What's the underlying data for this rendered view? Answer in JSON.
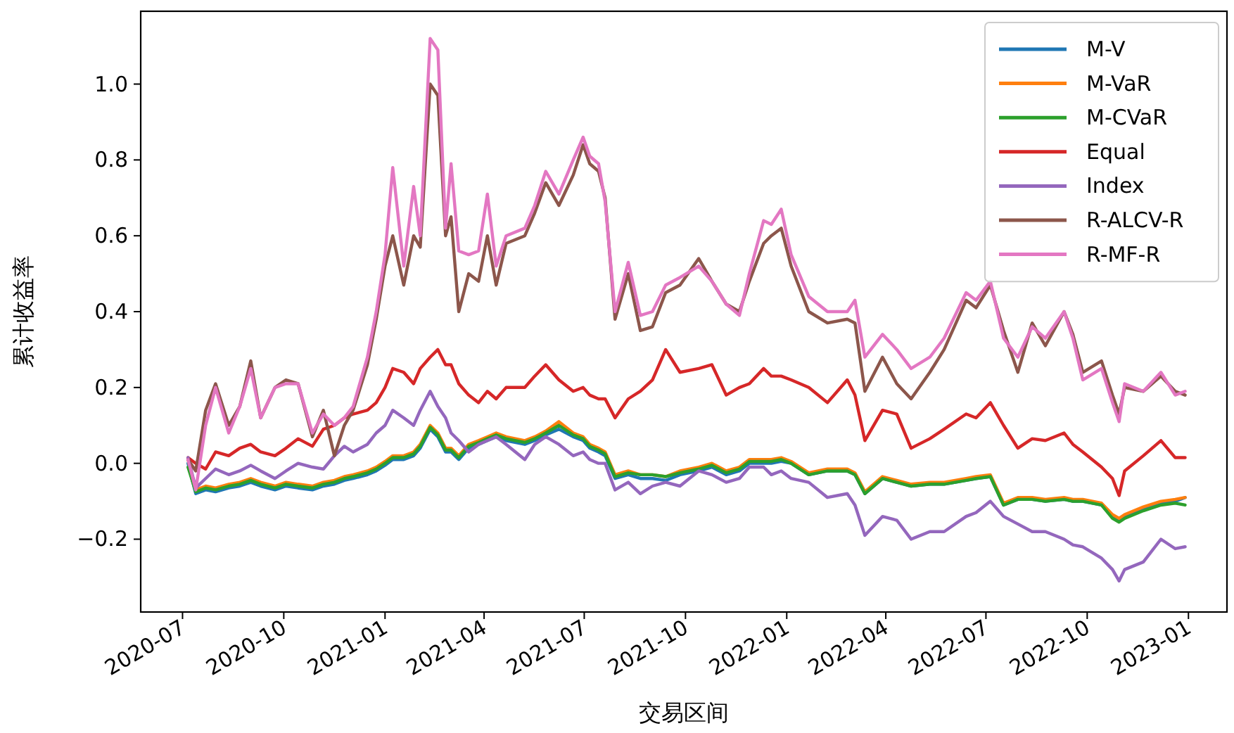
{
  "chart_data": {
    "type": "line",
    "xlabel": "交易区间",
    "ylabel": "累计收益率",
    "legend": "top right",
    "grid": false,
    "line_style": "solid",
    "marker": "none",
    "xlim": [
      "2020-05-24",
      "2023-02-05"
    ],
    "ylim": [
      -0.392,
      1.192
    ],
    "xticks": [
      {
        "value": "2020-07-01",
        "label": "2020-07"
      },
      {
        "value": "2020-10-01",
        "label": "2020-10"
      },
      {
        "value": "2021-01-01",
        "label": "2021-01"
      },
      {
        "value": "2021-04-01",
        "label": "2021-04"
      },
      {
        "value": "2021-07-01",
        "label": "2021-07"
      },
      {
        "value": "2021-10-01",
        "label": "2021-10"
      },
      {
        "value": "2022-01-01",
        "label": "2022-01"
      },
      {
        "value": "2022-04-01",
        "label": "2022-04"
      },
      {
        "value": "2022-07-01",
        "label": "2022-07"
      },
      {
        "value": "2022-10-01",
        "label": "2022-10"
      },
      {
        "value": "2023-01-01",
        "label": "2023-01"
      }
    ],
    "yticks": [
      {
        "value": -0.2,
        "label": "−0.2"
      },
      {
        "value": 0,
        "label": "0.0"
      },
      0.2,
      0.4,
      0.6,
      0.8,
      {
        "value": 1,
        "label": "1.0"
      }
    ],
    "x": [
      "2020-07-06",
      "2020-07-13",
      "2020-07-22",
      "2020-07-31",
      "2020-08-12",
      "2020-08-22",
      "2020-09-01",
      "2020-09-10",
      "2020-09-23",
      "2020-10-03",
      "2020-10-14",
      "2020-10-27",
      "2020-11-06",
      "2020-11-16",
      "2020-11-25",
      "2020-12-03",
      "2020-12-16",
      "2020-12-24",
      "2021-01-01",
      "2021-01-08",
      "2021-01-18",
      "2021-01-27",
      "2021-02-02",
      "2021-02-11",
      "2021-02-18",
      "2021-02-25",
      "2021-03-02",
      "2021-03-09",
      "2021-03-18",
      "2021-03-27",
      "2021-04-04",
      "2021-04-12",
      "2021-04-21",
      "2021-05-08",
      "2021-05-17",
      "2021-05-27",
      "2021-06-08",
      "2021-06-21",
      "2021-06-30",
      "2021-07-06",
      "2021-07-14",
      "2021-07-20",
      "2021-07-29",
      "2021-08-10",
      "2021-08-21",
      "2021-09-01",
      "2021-09-13",
      "2021-09-26",
      "2021-10-13",
      "2021-10-25",
      "2021-11-07",
      "2021-11-19",
      "2021-11-28",
      "2021-12-11",
      "2021-12-18",
      "2021-12-27",
      "2022-01-05",
      "2022-01-21",
      "2022-02-07",
      "2022-02-25",
      "2022-03-04",
      "2022-03-13",
      "2022-03-29",
      "2022-04-11",
      "2022-04-24",
      "2022-05-11",
      "2022-05-24",
      "2022-06-13",
      "2022-06-22",
      "2022-07-05",
      "2022-07-17",
      "2022-07-30",
      "2022-08-12",
      "2022-08-24",
      "2022-09-10",
      "2022-09-18",
      "2022-09-27",
      "2022-10-14",
      "2022-10-24",
      "2022-10-30",
      "2022-11-04",
      "2022-11-21",
      "2022-12-07",
      "2022-12-20",
      "2022-12-29"
    ],
    "series": [
      {
        "name": "M-V",
        "color": "#1f77b4",
        "values": [
          0.0,
          -0.08,
          -0.07,
          -0.075,
          -0.065,
          -0.06,
          -0.05,
          -0.06,
          -0.07,
          -0.06,
          -0.065,
          -0.07,
          -0.06,
          -0.055,
          -0.045,
          -0.04,
          -0.03,
          -0.02,
          -0.005,
          0.01,
          0.01,
          0.02,
          0.04,
          0.09,
          0.07,
          0.03,
          0.03,
          0.01,
          0.04,
          0.05,
          0.06,
          0.07,
          0.06,
          0.05,
          0.06,
          0.075,
          0.09,
          0.07,
          0.06,
          0.04,
          0.03,
          0.02,
          -0.04,
          -0.03,
          -0.04,
          -0.04,
          -0.045,
          -0.03,
          -0.02,
          -0.01,
          -0.03,
          -0.02,
          0.0,
          0.0,
          0.0,
          0.005,
          0.0,
          -0.03,
          -0.02,
          -0.02,
          -0.03,
          -0.08,
          -0.04,
          -0.05,
          -0.06,
          -0.055,
          -0.055,
          -0.045,
          -0.04,
          -0.035,
          -0.11,
          -0.095,
          -0.095,
          -0.1,
          -0.095,
          -0.1,
          -0.1,
          -0.11,
          -0.14,
          -0.15,
          -0.14,
          -0.12,
          -0.105,
          -0.1,
          -0.09
        ]
      },
      {
        "name": "M-VaR",
        "color": "#ff7f0e",
        "values": [
          0.01,
          -0.07,
          -0.06,
          -0.065,
          -0.055,
          -0.05,
          -0.04,
          -0.05,
          -0.06,
          -0.05,
          -0.055,
          -0.06,
          -0.05,
          -0.045,
          -0.035,
          -0.03,
          -0.02,
          -0.01,
          0.005,
          0.02,
          0.02,
          0.03,
          0.05,
          0.1,
          0.08,
          0.04,
          0.04,
          0.02,
          0.05,
          0.06,
          0.07,
          0.08,
          0.07,
          0.06,
          0.07,
          0.085,
          0.11,
          0.08,
          0.07,
          0.05,
          0.04,
          0.03,
          -0.03,
          -0.02,
          -0.03,
          -0.03,
          -0.035,
          -0.02,
          -0.01,
          0.0,
          -0.02,
          -0.01,
          0.01,
          0.01,
          0.01,
          0.015,
          0.005,
          -0.025,
          -0.015,
          -0.015,
          -0.025,
          -0.075,
          -0.035,
          -0.045,
          -0.055,
          -0.05,
          -0.05,
          -0.04,
          -0.035,
          -0.03,
          -0.105,
          -0.09,
          -0.09,
          -0.095,
          -0.09,
          -0.095,
          -0.095,
          -0.105,
          -0.135,
          -0.145,
          -0.135,
          -0.115,
          -0.1,
          -0.095,
          -0.09
        ]
      },
      {
        "name": "M-CVaR",
        "color": "#2ca02c",
        "values": [
          -0.01,
          -0.075,
          -0.065,
          -0.07,
          -0.06,
          -0.055,
          -0.045,
          -0.055,
          -0.065,
          -0.055,
          -0.06,
          -0.065,
          -0.055,
          -0.05,
          -0.04,
          -0.035,
          -0.025,
          -0.015,
          0.0,
          0.015,
          0.015,
          0.025,
          0.045,
          0.095,
          0.075,
          0.035,
          0.035,
          0.015,
          0.045,
          0.055,
          0.065,
          0.075,
          0.065,
          0.055,
          0.065,
          0.08,
          0.1,
          0.075,
          0.065,
          0.045,
          0.035,
          0.025,
          -0.035,
          -0.025,
          -0.03,
          -0.03,
          -0.035,
          -0.025,
          -0.015,
          -0.005,
          -0.025,
          -0.015,
          0.005,
          0.005,
          0.005,
          0.01,
          0.0,
          -0.03,
          -0.02,
          -0.02,
          -0.03,
          -0.08,
          -0.04,
          -0.05,
          -0.06,
          -0.055,
          -0.055,
          -0.045,
          -0.04,
          -0.035,
          -0.11,
          -0.095,
          -0.095,
          -0.1,
          -0.095,
          -0.1,
          -0.1,
          -0.11,
          -0.145,
          -0.155,
          -0.145,
          -0.125,
          -0.11,
          -0.105,
          -0.11
        ]
      },
      {
        "name": "Equal",
        "color": "#d62728",
        "values": [
          0.015,
          0.0,
          -0.015,
          0.03,
          0.02,
          0.04,
          0.05,
          0.03,
          0.02,
          0.04,
          0.065,
          0.045,
          0.09,
          0.1,
          0.12,
          0.13,
          0.14,
          0.16,
          0.2,
          0.25,
          0.24,
          0.21,
          0.25,
          0.28,
          0.3,
          0.26,
          0.26,
          0.21,
          0.18,
          0.16,
          0.19,
          0.17,
          0.2,
          0.2,
          0.23,
          0.26,
          0.22,
          0.19,
          0.2,
          0.18,
          0.17,
          0.17,
          0.12,
          0.17,
          0.19,
          0.22,
          0.3,
          0.24,
          0.25,
          0.26,
          0.18,
          0.2,
          0.21,
          0.25,
          0.23,
          0.23,
          0.22,
          0.2,
          0.16,
          0.22,
          0.18,
          0.06,
          0.14,
          0.13,
          0.04,
          0.065,
          0.09,
          0.13,
          0.12,
          0.16,
          0.1,
          0.04,
          0.065,
          0.06,
          0.08,
          0.05,
          0.03,
          -0.01,
          -0.04,
          -0.085,
          -0.02,
          0.02,
          0.06,
          0.015,
          0.015
        ]
      },
      {
        "name": "Index",
        "color": "#9467bd",
        "values": [
          0.015,
          -0.065,
          -0.04,
          -0.015,
          -0.03,
          -0.02,
          -0.005,
          -0.02,
          -0.04,
          -0.02,
          0.0,
          -0.01,
          -0.015,
          0.02,
          0.045,
          0.03,
          0.05,
          0.08,
          0.1,
          0.14,
          0.12,
          0.1,
          0.14,
          0.19,
          0.15,
          0.12,
          0.08,
          0.06,
          0.03,
          0.05,
          0.06,
          0.07,
          0.05,
          0.01,
          0.05,
          0.07,
          0.05,
          0.02,
          0.03,
          0.01,
          0.0,
          0.0,
          -0.07,
          -0.05,
          -0.08,
          -0.06,
          -0.05,
          -0.06,
          -0.02,
          -0.03,
          -0.05,
          -0.04,
          -0.01,
          -0.01,
          -0.03,
          -0.02,
          -0.04,
          -0.05,
          -0.09,
          -0.08,
          -0.11,
          -0.19,
          -0.14,
          -0.15,
          -0.2,
          -0.18,
          -0.18,
          -0.14,
          -0.13,
          -0.1,
          -0.14,
          -0.16,
          -0.18,
          -0.18,
          -0.2,
          -0.215,
          -0.22,
          -0.25,
          -0.28,
          -0.31,
          -0.28,
          -0.26,
          -0.2,
          -0.225,
          -0.22
        ]
      },
      {
        "name": "R-ALCV-R",
        "color": "#8c564b",
        "values": [
          0.01,
          -0.02,
          0.14,
          0.21,
          0.1,
          0.15,
          0.27,
          0.12,
          0.2,
          0.22,
          0.21,
          0.07,
          0.14,
          0.02,
          0.1,
          0.14,
          0.26,
          0.38,
          0.52,
          0.6,
          0.47,
          0.6,
          0.57,
          1.0,
          0.97,
          0.6,
          0.65,
          0.4,
          0.5,
          0.48,
          0.6,
          0.47,
          0.58,
          0.6,
          0.66,
          0.74,
          0.68,
          0.76,
          0.84,
          0.79,
          0.77,
          0.7,
          0.38,
          0.5,
          0.35,
          0.36,
          0.45,
          0.47,
          0.54,
          0.48,
          0.42,
          0.4,
          0.48,
          0.58,
          0.6,
          0.62,
          0.52,
          0.4,
          0.37,
          0.38,
          0.37,
          0.19,
          0.28,
          0.21,
          0.17,
          0.24,
          0.3,
          0.43,
          0.41,
          0.47,
          0.35,
          0.24,
          0.37,
          0.31,
          0.4,
          0.34,
          0.24,
          0.27,
          0.18,
          0.13,
          0.2,
          0.19,
          0.23,
          0.19,
          0.18
        ]
      },
      {
        "name": "R-MF-R",
        "color": "#e377c2",
        "values": [
          0.01,
          -0.07,
          0.1,
          0.2,
          0.08,
          0.15,
          0.25,
          0.12,
          0.2,
          0.21,
          0.21,
          0.08,
          0.13,
          0.1,
          0.12,
          0.15,
          0.28,
          0.4,
          0.55,
          0.78,
          0.52,
          0.73,
          0.6,
          1.12,
          1.09,
          0.62,
          0.79,
          0.56,
          0.55,
          0.56,
          0.71,
          0.52,
          0.6,
          0.62,
          0.68,
          0.77,
          0.71,
          0.8,
          0.86,
          0.81,
          0.79,
          0.69,
          0.4,
          0.53,
          0.39,
          0.4,
          0.47,
          0.49,
          0.52,
          0.48,
          0.42,
          0.39,
          0.5,
          0.64,
          0.63,
          0.67,
          0.55,
          0.44,
          0.4,
          0.4,
          0.43,
          0.28,
          0.34,
          0.3,
          0.25,
          0.28,
          0.33,
          0.45,
          0.43,
          0.48,
          0.33,
          0.28,
          0.36,
          0.33,
          0.4,
          0.33,
          0.22,
          0.25,
          0.16,
          0.11,
          0.21,
          0.19,
          0.24,
          0.18,
          0.19
        ]
      }
    ]
  }
}
